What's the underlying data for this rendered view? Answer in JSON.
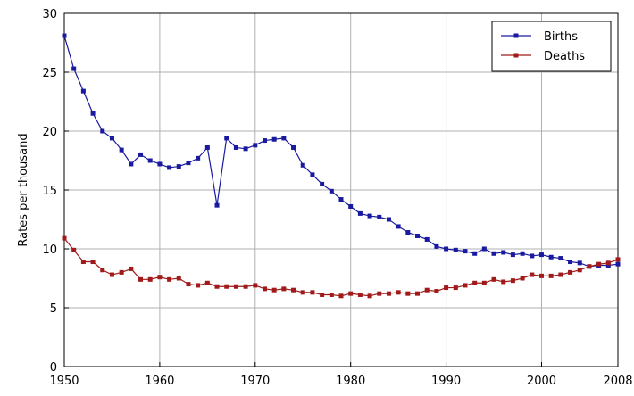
{
  "chart_data": {
    "type": "line",
    "title": "",
    "xlabel": "",
    "ylabel": "Rates per thousand",
    "xlim": [
      1950,
      2008
    ],
    "ylim": [
      0,
      30
    ],
    "xticks": [
      1950,
      1960,
      1970,
      1980,
      1990,
      2000,
      2008
    ],
    "yticks": [
      0,
      5,
      10,
      15,
      20,
      25,
      30
    ],
    "grid": true,
    "legend_position": "top-right",
    "x": [
      1950,
      1951,
      1952,
      1953,
      1954,
      1955,
      1956,
      1957,
      1958,
      1959,
      1960,
      1961,
      1962,
      1963,
      1964,
      1965,
      1966,
      1967,
      1968,
      1969,
      1970,
      1971,
      1972,
      1973,
      1974,
      1975,
      1976,
      1977,
      1978,
      1979,
      1980,
      1981,
      1982,
      1983,
      1984,
      1985,
      1986,
      1987,
      1988,
      1989,
      1990,
      1991,
      1992,
      1993,
      1994,
      1995,
      1996,
      1997,
      1998,
      1999,
      2000,
      2001,
      2002,
      2003,
      2004,
      2005,
      2006,
      2007,
      2008
    ],
    "series": [
      {
        "name": "Births",
        "color": "#1a1aa0",
        "marker": "square",
        "values": [
          28.1,
          25.3,
          23.4,
          21.5,
          20.0,
          19.4,
          18.4,
          17.2,
          18.0,
          17.5,
          17.2,
          16.9,
          17.0,
          17.3,
          17.7,
          18.6,
          13.7,
          19.4,
          18.6,
          18.5,
          18.8,
          19.2,
          19.3,
          19.4,
          18.6,
          17.1,
          16.3,
          15.5,
          14.9,
          14.2,
          13.6,
          13.0,
          12.8,
          12.7,
          12.5,
          11.9,
          11.4,
          11.1,
          10.8,
          10.2,
          10.0,
          9.9,
          9.8,
          9.6,
          10.0,
          9.6,
          9.7,
          9.5,
          9.6,
          9.4,
          9.5,
          9.3,
          9.2,
          8.9,
          8.8,
          8.5,
          8.6,
          8.6,
          8.7
        ]
      },
      {
        "name": "Deaths",
        "color": "#a01a1a",
        "marker": "square",
        "values": [
          10.9,
          9.9,
          8.9,
          8.9,
          8.2,
          7.8,
          8.0,
          8.3,
          7.4,
          7.4,
          7.6,
          7.4,
          7.5,
          7.0,
          6.9,
          7.1,
          6.8,
          6.8,
          6.8,
          6.8,
          6.9,
          6.6,
          6.5,
          6.6,
          6.5,
          6.3,
          6.3,
          6.1,
          6.1,
          6.0,
          6.2,
          6.1,
          6.0,
          6.2,
          6.2,
          6.3,
          6.2,
          6.2,
          6.5,
          6.4,
          6.7,
          6.7,
          6.9,
          7.1,
          7.1,
          7.4,
          7.2,
          7.3,
          7.5,
          7.8,
          7.7,
          7.7,
          7.8,
          8.0,
          8.2,
          8.5,
          8.7,
          8.8,
          9.1
        ]
      }
    ]
  }
}
